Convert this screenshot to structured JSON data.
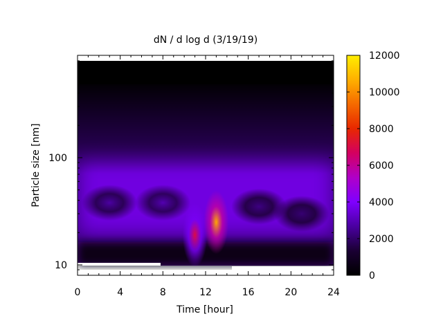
{
  "chart_data": {
    "type": "heatmap",
    "title": "dN / d log d (3/19/19)",
    "xlabel": "Time [hour]",
    "ylabel": "Particle size [nm]",
    "xlim": [
      0,
      24
    ],
    "x_ticks": [
      "0",
      "4",
      "8",
      "12",
      "16",
      "20",
      "24"
    ],
    "x_tick_values": [
      0,
      4,
      8,
      12,
      16,
      20,
      24
    ],
    "y_scale": "log",
    "ylim": [
      8,
      900
    ],
    "y_ticks": [
      "10",
      "100"
    ],
    "y_tick_values": [
      10,
      100
    ],
    "colorbar": {
      "range": [
        0,
        12000
      ],
      "ticks": [
        "0",
        "2000",
        "4000",
        "6000",
        "8000",
        "10000",
        "12000"
      ],
      "tick_values": [
        0,
        2000,
        4000,
        6000,
        8000,
        10000,
        12000
      ],
      "colormap": [
        "#000000",
        "#1a0033",
        "#4a00a0",
        "#7f00ff",
        "#b000c8",
        "#d40060",
        "#e82800",
        "#f56a00",
        "#ffb000",
        "#ffee00"
      ]
    },
    "features": [
      {
        "x": 13,
        "y": 25,
        "value": 10500
      },
      {
        "x": 11,
        "y": 19,
        "value": 7000
      },
      {
        "x": 3,
        "y": 38,
        "value": 2700
      },
      {
        "x": 8,
        "y": 38,
        "value": 2900
      },
      {
        "x": 17,
        "y": 35,
        "value": 2300
      },
      {
        "x": 21,
        "y": 30,
        "value": 2100
      }
    ],
    "grid": false
  }
}
